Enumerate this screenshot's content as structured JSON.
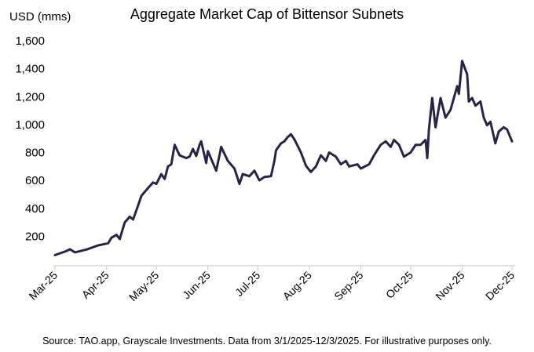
{
  "chart_data": {
    "type": "line",
    "title": "Aggregate Market Cap of Bittensor Subnets",
    "ylabel": "USD (mms)",
    "xlabel": "",
    "ylim": [
      0,
      1600
    ],
    "yticks": [
      200,
      400,
      600,
      800,
      1000,
      1200,
      1400,
      1600
    ],
    "ytick_labels": [
      "200",
      "400",
      "600",
      "800",
      "1,000",
      "1,200",
      "1,400",
      "1,600"
    ],
    "x_unit": "days since 2025-03-01",
    "xlim": [
      0,
      277
    ],
    "xticks": [
      0,
      31,
      61,
      92,
      122,
      153,
      184,
      214,
      245,
      275
    ],
    "xtick_labels": [
      "Mar-25",
      "Apr-25",
      "May-25",
      "Jun-25",
      "Jul-25",
      "Aug-25",
      "Sep-25",
      "Oct-25",
      "Nov-25",
      "Dec-25"
    ],
    "grid": false,
    "series": [
      {
        "name": "Aggregate Market Cap",
        "color": "#2b2344",
        "x": [
          0,
          7,
          9,
          12,
          19,
          26,
          32,
          34,
          37,
          39,
          42,
          45,
          47,
          50,
          52,
          56,
          59,
          61,
          64,
          66,
          68,
          70,
          72,
          75,
          79,
          81,
          83,
          85,
          87,
          88,
          91,
          92,
          97,
          99,
          100,
          104,
          108,
          111,
          113,
          117,
          120,
          123,
          126,
          130,
          132,
          133,
          136,
          138,
          140,
          142,
          144,
          148,
          151,
          154,
          157,
          160,
          163,
          165,
          169,
          172,
          175,
          177,
          182,
          184,
          189,
          192,
          196,
          199,
          202,
          204,
          207,
          210,
          214,
          217,
          220,
          223,
          224,
          225,
          227,
          229,
          232,
          235,
          238,
          242,
          243,
          245,
          248,
          249,
          251,
          253,
          256,
          258,
          260,
          262,
          265,
          267,
          270,
          272,
          275
        ],
        "values": [
          65,
          95,
          107,
          85,
          105,
          135,
          150,
          190,
          210,
          180,
          300,
          340,
          320,
          420,
          490,
          545,
          585,
          575,
          645,
          610,
          700,
          715,
          855,
          780,
          760,
          770,
          825,
          775,
          855,
          880,
          725,
          810,
          670,
          780,
          840,
          740,
          685,
          575,
          645,
          630,
          670,
          600,
          625,
          630,
          740,
          815,
          865,
          880,
          910,
          930,
          895,
          800,
          705,
          660,
          700,
          780,
          740,
          800,
          770,
          715,
          740,
          700,
          715,
          685,
          715,
          780,
          855,
          880,
          840,
          890,
          855,
          770,
          800,
          855,
          855,
          890,
          760,
          965,
          1190,
          980,
          1190,
          1050,
          1105,
          1275,
          1220,
          1455,
          1360,
          1165,
          1190,
          1135,
          1165,
          1050,
          995,
          1020,
          865,
          950,
          980,
          965,
          880
        ]
      }
    ]
  },
  "source": "Source: TAO.app, Grayscale Investments. Data from 3/1/2025-12/3/2025. For illustrative purposes only."
}
